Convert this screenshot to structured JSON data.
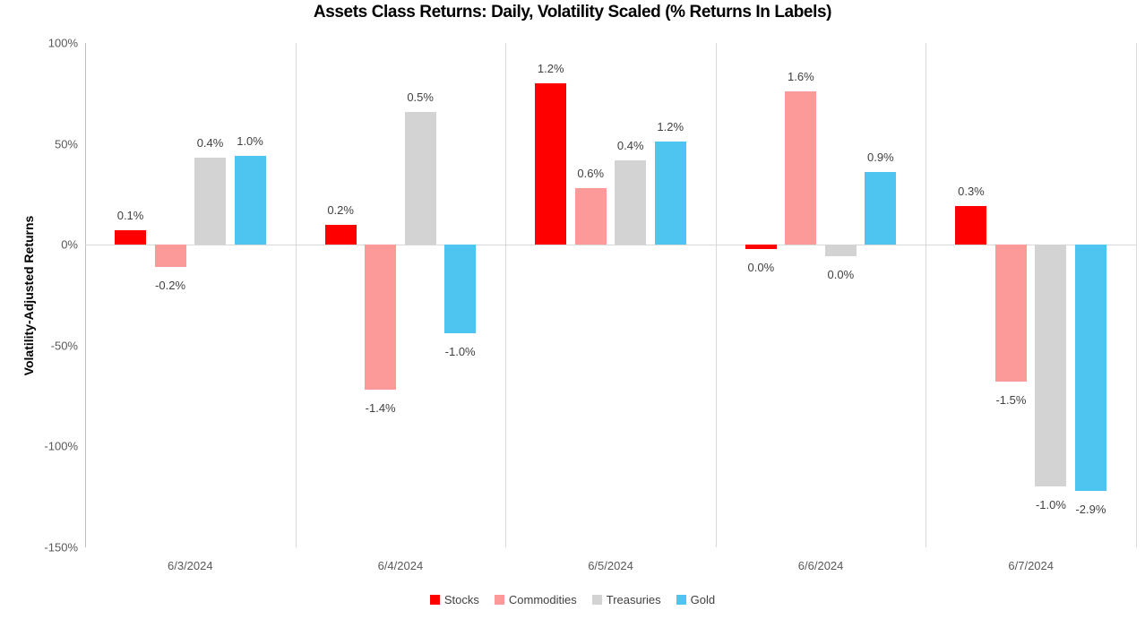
{
  "chart_data": {
    "type": "bar",
    "title": "Assets Class Returns: Daily, Volatility Scaled (% Returns In Labels)",
    "ylabel": "Volatility-Adjusted Returns",
    "xlabel": "",
    "ylim": [
      -150,
      100
    ],
    "y_ticks": [
      {
        "value": 100,
        "label": "100%"
      },
      {
        "value": 50,
        "label": "50%"
      },
      {
        "value": 0,
        "label": "0%"
      },
      {
        "value": -50,
        "label": "-50%"
      },
      {
        "value": -100,
        "label": "-100%"
      },
      {
        "value": -150,
        "label": "-150%"
      }
    ],
    "grid": "vertical category separators and zero line only",
    "legend_position": "bottom",
    "categories": [
      "6/3/2024",
      "6/4/2024",
      "6/5/2024",
      "6/6/2024",
      "6/7/2024"
    ],
    "series": [
      {
        "name": "Stocks",
        "color": "#ff0000",
        "bar_heights_axis_pct": [
          7,
          10,
          80,
          -2,
          19
        ],
        "point_labels": [
          "0.1%",
          "0.2%",
          "1.2%",
          "0.0%",
          "0.3%"
        ]
      },
      {
        "name": "Commodities",
        "color": "#fc9a9a",
        "bar_heights_axis_pct": [
          -11,
          -72,
          28,
          76,
          -68
        ],
        "point_labels": [
          "-0.2%",
          "-1.4%",
          "0.6%",
          "1.6%",
          "-1.5%"
        ]
      },
      {
        "name": "Treasuries",
        "color": "#d3d3d3",
        "bar_heights_axis_pct": [
          43,
          66,
          42,
          -5.5,
          -120
        ],
        "point_labels": [
          "0.4%",
          "0.5%",
          "0.4%",
          "0.0%",
          "-1.0%"
        ]
      },
      {
        "name": "Gold",
        "color": "#4dc5f0",
        "bar_heights_axis_pct": [
          44,
          -44,
          51,
          36,
          -122
        ],
        "point_labels": [
          "1.0%",
          "-1.0%",
          "1.2%",
          "0.9%",
          "-2.9%"
        ]
      }
    ]
  }
}
